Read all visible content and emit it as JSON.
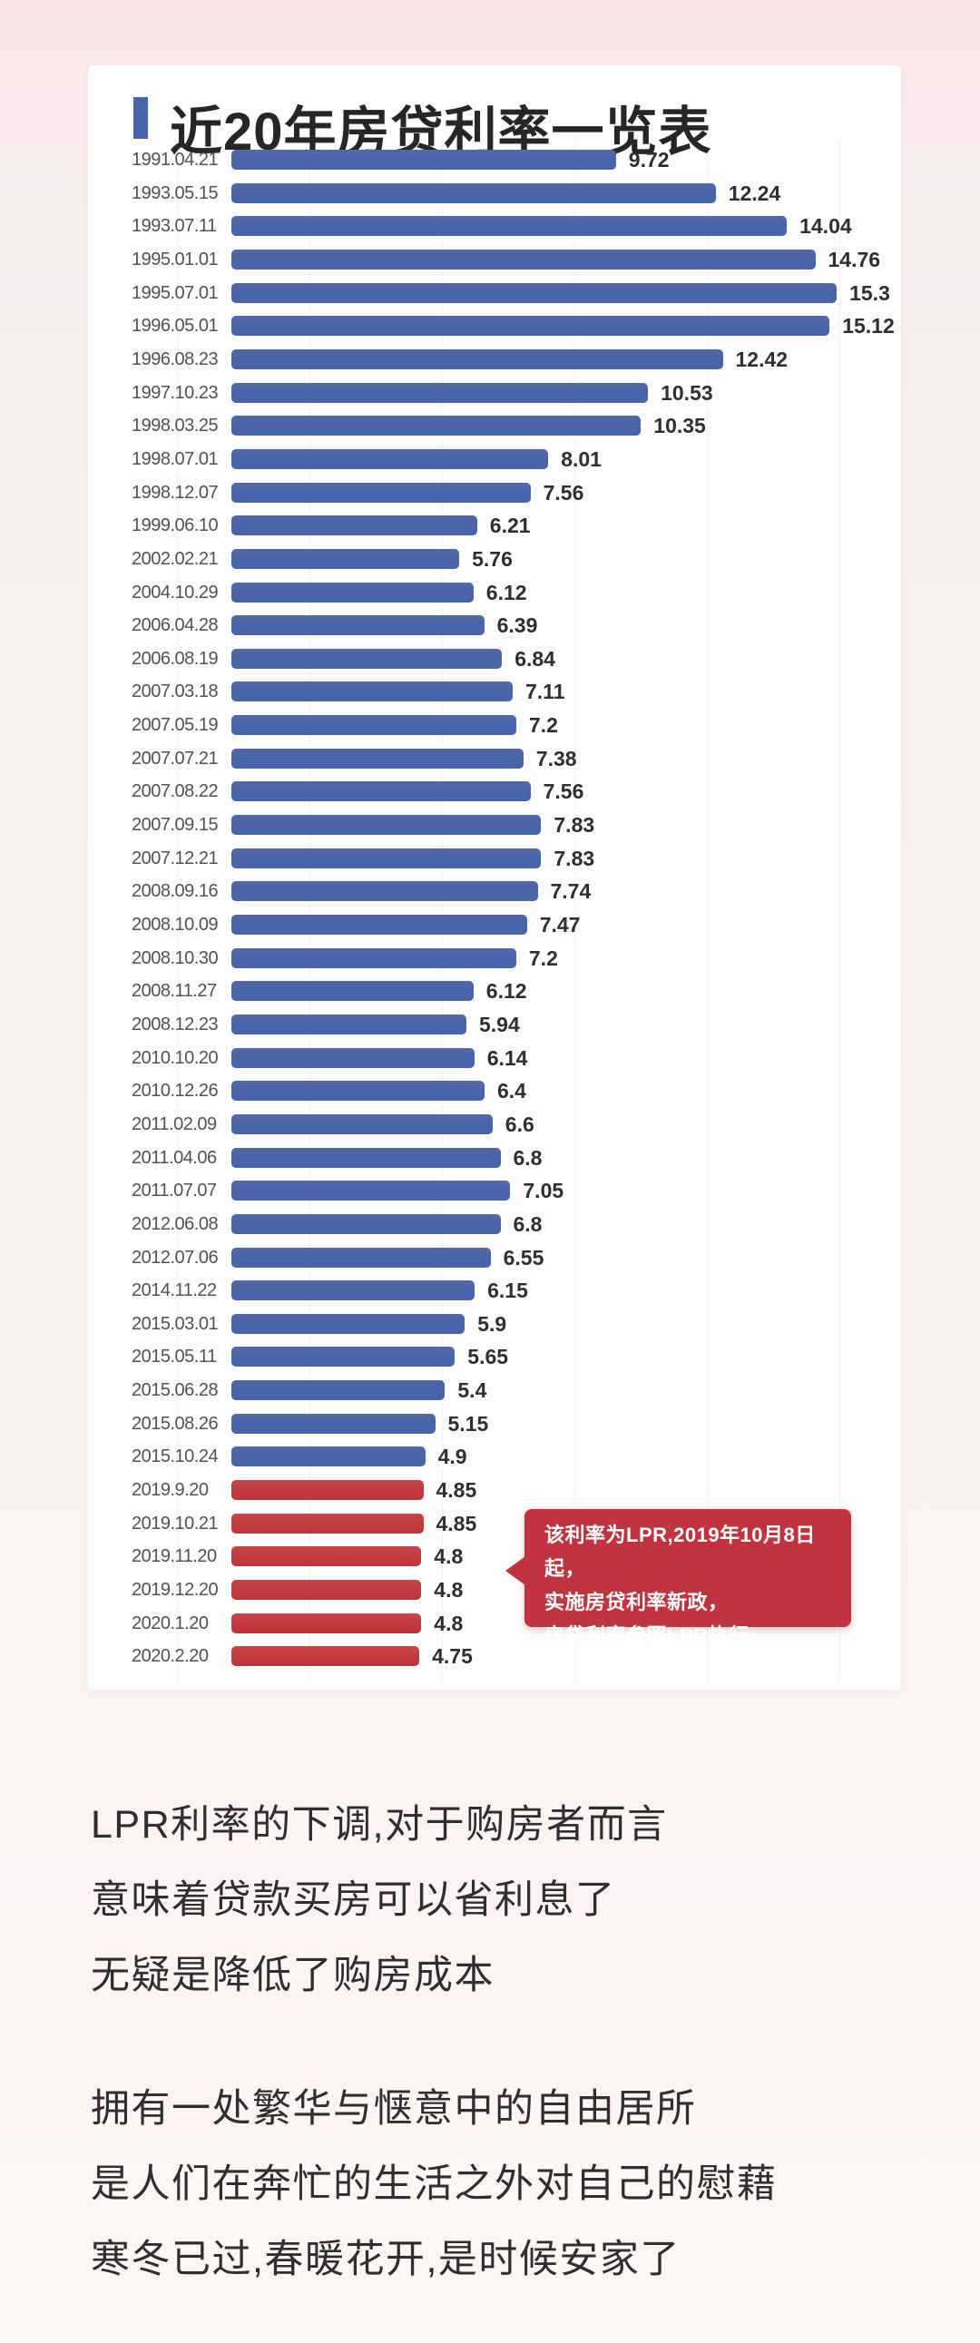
{
  "colors": {
    "bar_blue": "#4a64aa",
    "bar_red": "#c13a42",
    "callout_bg": "#c0343f",
    "title_bullet": "#4a64aa",
    "page_background_tint": "#f8eaec",
    "card_background": "#fdfdfd"
  },
  "chart_data": {
    "type": "bar",
    "orientation": "horizontal",
    "title": "近20年房贷利率一览表",
    "grid": "faint-vertical-lines",
    "legend": false,
    "xlim": [
      0,
      16
    ],
    "red_from_index": 40,
    "categories": [
      "1991.04.21",
      "1993.05.15",
      "1993.07.11",
      "1995.01.01",
      "1995.07.01",
      "1996.05.01",
      "1996.08.23",
      "1997.10.23",
      "1998.03.25",
      "1998.07.01",
      "1998.12.07",
      "1999.06.10",
      "2002.02.21",
      "2004.10.29",
      "2006.04.28",
      "2006.08.19",
      "2007.03.18",
      "2007.05.19",
      "2007.07.21",
      "2007.08.22",
      "2007.09.15",
      "2007.12.21",
      "2008.09.16",
      "2008.10.09",
      "2008.10.30",
      "2008.11.27",
      "2008.12.23",
      "2010.10.20",
      "2010.12.26",
      "2011.02.09",
      "2011.04.06",
      "2011.07.07",
      "2012.06.08",
      "2012.07.06",
      "2014.11.22",
      "2015.03.01",
      "2015.05.11",
      "2015.06.28",
      "2015.08.26",
      "2015.10.24",
      "2019.9.20",
      "2019.10.21",
      "2019.11.20",
      "2019.12.20",
      "2020.1.20",
      "2020.2.20"
    ],
    "values": [
      9.72,
      12.24,
      14.04,
      14.76,
      15.3,
      15.12,
      12.42,
      10.53,
      10.35,
      8.01,
      7.56,
      6.21,
      5.76,
      6.12,
      6.39,
      6.84,
      7.11,
      7.2,
      7.38,
      7.56,
      7.83,
      7.83,
      7.74,
      7.47,
      7.2,
      6.12,
      5.94,
      6.14,
      6.4,
      6.6,
      6.8,
      7.05,
      6.8,
      6.55,
      6.15,
      5.9,
      5.65,
      5.4,
      5.15,
      4.9,
      4.85,
      4.85,
      4.8,
      4.8,
      4.8,
      4.75
    ],
    "labels": [
      "9.72",
      "12.24",
      "14.04",
      "14.76",
      "15.3",
      "15.12",
      "12.42",
      "10.53",
      "10.35",
      "8.01",
      "7.56",
      "6.21",
      "5.76",
      "6.12",
      "6.39",
      "6.84",
      "7.11",
      "7.2",
      "7.38",
      "7.56",
      "7.83",
      "7.83",
      "7.74",
      "7.47",
      "7.2",
      "6.12",
      "5.94",
      "6.14",
      "6.4",
      "6.6",
      "6.8",
      "7.05",
      "6.8",
      "6.55",
      "6.15",
      "5.9",
      "5.65",
      "5.4",
      "5.15",
      "4.9",
      "4.85",
      "4.85",
      "4.8",
      "4.8",
      "4.8",
      "4.75"
    ]
  },
  "callout": {
    "lines": [
      "该利率为LPR,2019年10月8日起，",
      "实施房贷利率新政，",
      "房贷利率参照LPR执行。"
    ]
  },
  "paragraphs": [
    {
      "lines": [
        "LPR利率的下调,对于购房者而言",
        "意味着贷款买房可以省利息了",
        "无疑是降低了购房成本"
      ]
    },
    {
      "lines": [
        "拥有一处繁华与惬意中的自由居所",
        "是人们在奔忙的生活之外对自己的慰藉",
        "寒冬已过,春暖花开,是时候安家了"
      ]
    }
  ]
}
